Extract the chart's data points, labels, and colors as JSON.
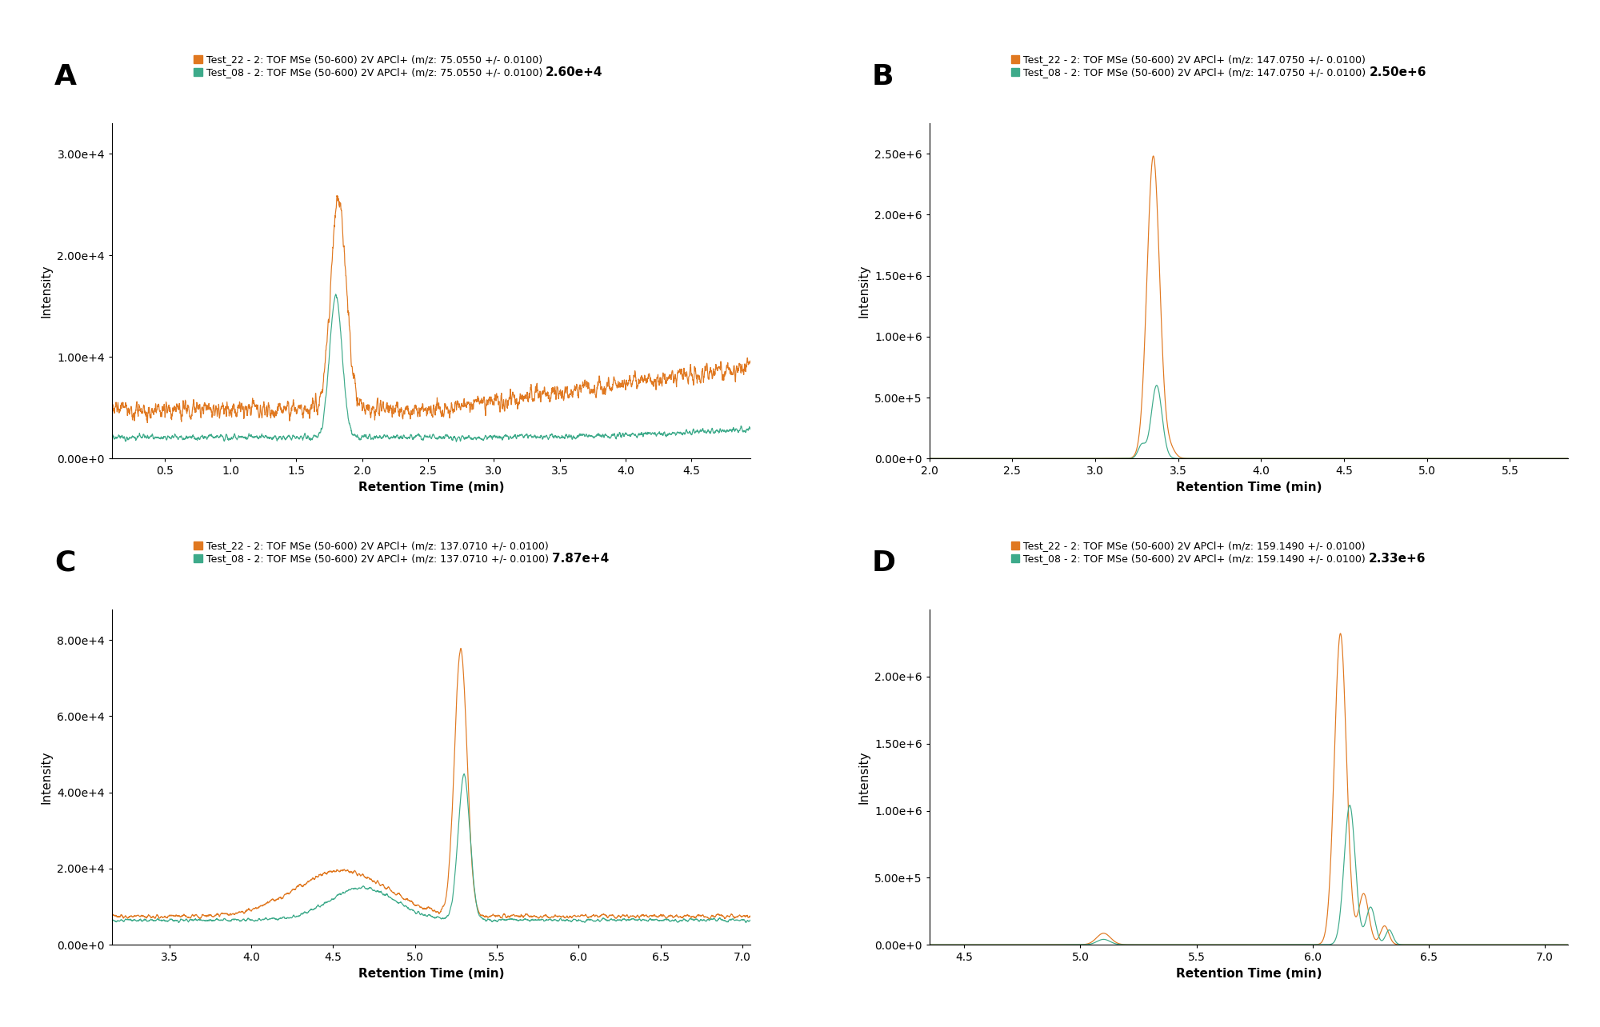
{
  "panels": [
    {
      "label": "A",
      "legend_line1": "Test_22 - 2: TOF MSe (50-600) 2V APCl+ (m/z: 75.0550 +/- 0.0100)",
      "legend_line2": "Test_08 - 2: TOF MSe (50-600) 2V APCl+ (m/z: 75.0550 +/- 0.0100)",
      "max_label": "2.60e+4",
      "xlabel": "Retention Time (min)",
      "ylabel": "Intensity",
      "xlim": [
        0.1,
        4.95
      ],
      "ylim": [
        0,
        33000
      ],
      "yticks": [
        0,
        10000,
        20000,
        30000
      ],
      "ytick_labels": [
        "0.00e+0",
        "1.00e+4",
        "2.00e+4",
        "3.00e+4"
      ],
      "xticks": [
        0.5,
        1.0,
        1.5,
        2.0,
        2.5,
        3.0,
        3.5,
        4.0,
        4.5
      ]
    },
    {
      "label": "B",
      "legend_line1": "Test_22 - 2: TOF MSe (50-600) 2V APCl+ (m/z: 147.0750 +/- 0.0100)",
      "legend_line2": "Test_08 - 2: TOF MSe (50-600) 2V APCl+ (m/z: 147.0750 +/- 0.0100)",
      "max_label": "2.50e+6",
      "xlabel": "Retention Time (min)",
      "ylabel": "Intensity",
      "xlim": [
        2.0,
        5.85
      ],
      "ylim": [
        0,
        2750000
      ],
      "yticks": [
        0,
        500000,
        1000000,
        1500000,
        2000000,
        2500000
      ],
      "ytick_labels": [
        "0.00e+0",
        "5.00e+5",
        "1.00e+6",
        "1.50e+6",
        "2.00e+6",
        "2.50e+6"
      ],
      "xticks": [
        2.0,
        2.5,
        3.0,
        3.5,
        4.0,
        4.5,
        5.0,
        5.5
      ]
    },
    {
      "label": "C",
      "legend_line1": "Test_22 - 2: TOF MSe (50-600) 2V APCl+ (m/z: 137.0710 +/- 0.0100)",
      "legend_line2": "Test_08 - 2: TOF MSe (50-600) 2V APCl+ (m/z: 137.0710 +/- 0.0100)",
      "max_label": "7.87e+4",
      "xlabel": "Retention Time (min)",
      "ylabel": "Intensity",
      "xlim": [
        3.15,
        7.05
      ],
      "ylim": [
        0,
        88000
      ],
      "yticks": [
        0,
        20000,
        40000,
        60000,
        80000
      ],
      "ytick_labels": [
        "0.00e+0",
        "2.00e+4",
        "4.00e+4",
        "6.00e+4",
        "8.00e+4"
      ],
      "xticks": [
        3.5,
        4.0,
        4.5,
        5.0,
        5.5,
        6.0,
        6.5,
        7.0
      ]
    },
    {
      "label": "D",
      "legend_line1": "Test_22 - 2: TOF MSe (50-600) 2V APCl+ (m/z: 159.1490 +/- 0.0100)",
      "legend_line2": "Test_08 - 2: TOF MSe (50-600) 2V APCl+ (m/z: 159.1490 +/- 0.0100)",
      "max_label": "2.33e+6",
      "xlabel": "Retention Time (min)",
      "ylabel": "Intensity",
      "xlim": [
        4.35,
        7.1
      ],
      "ylim": [
        0,
        2500000
      ],
      "yticks": [
        0,
        500000,
        1000000,
        1500000,
        2000000
      ],
      "ytick_labels": [
        "0.00e+0",
        "5.00e+5",
        "1.00e+6",
        "1.50e+6",
        "2.00e+6"
      ],
      "xticks": [
        4.5,
        5.0,
        5.5,
        6.0,
        6.5,
        7.0
      ]
    }
  ],
  "color_orange": "#E07820",
  "color_green": "#3DAA8A",
  "panel_label_fontsize": 26,
  "legend_fontsize": 9.0,
  "axis_label_fontsize": 11,
  "tick_fontsize": 10,
  "max_label_fontsize": 11,
  "background_color": "#ffffff"
}
